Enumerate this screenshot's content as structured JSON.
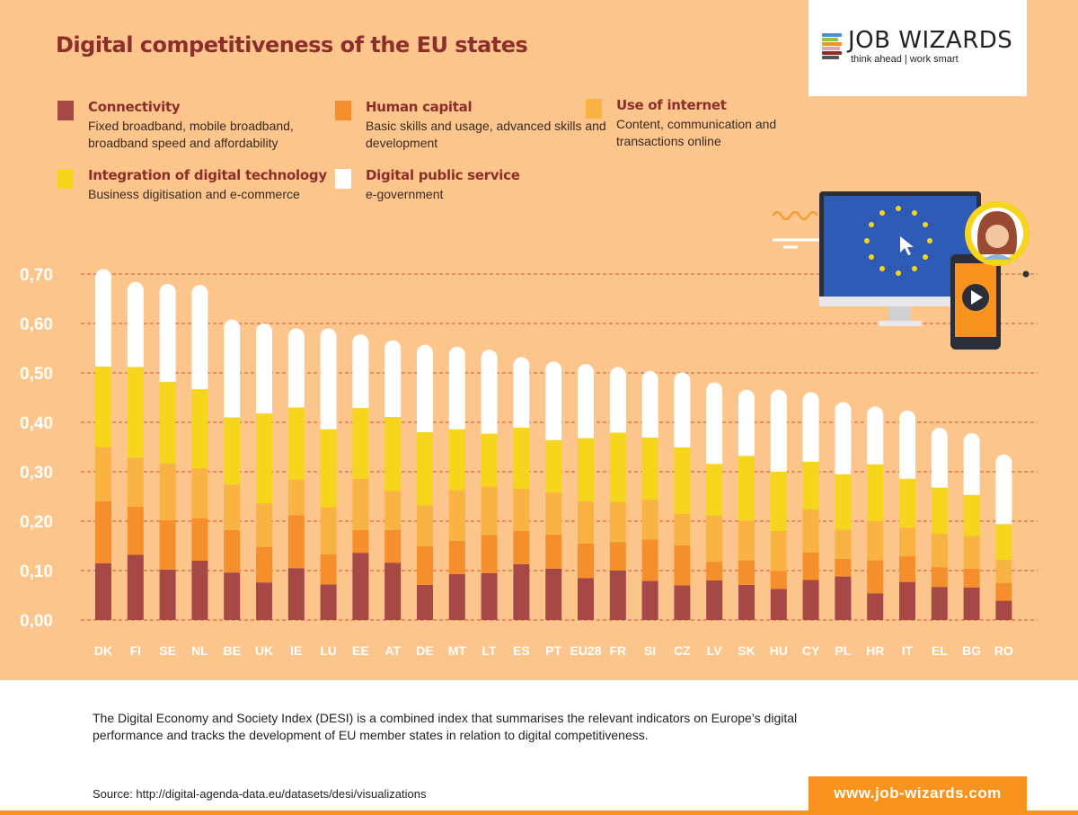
{
  "title": "Digital competitiveness of the EU states",
  "logo": {
    "name": "JOB WIZARDS",
    "tagline": "think ahead | work smart"
  },
  "colors": {
    "background": "#fcc58c",
    "connectivity": "#a64845",
    "human_capital": "#f58f2c",
    "use_of_internet": "#f9b342",
    "integration": "#f6d51d",
    "public_service": "#ffffff",
    "gridline": "#e0694a",
    "accent": "#f7931e"
  },
  "legend": [
    {
      "title": "Connectivity",
      "desc": "Fixed broadband, mobile broadband, broadband speed and affordability",
      "color": "#a64845"
    },
    {
      "title": "Human capital",
      "desc": "Basic skills and usage, advanced skills and development",
      "color": "#f58f2c"
    },
    {
      "title": "Use of internet",
      "desc": "Content, communication and transactions online",
      "color": "#f9b342"
    },
    {
      "title": "Integration of digital technology",
      "desc": "Business digitisation and e-commerce",
      "color": "#f6d51d"
    },
    {
      "title": "Digital public service",
      "desc": "e-government",
      "color": "#ffffff"
    }
  ],
  "chart_data": {
    "type": "bar",
    "stacked": true,
    "title": "Digital competitiveness of the EU states",
    "xlabel": "",
    "ylabel": "",
    "ylim": [
      0,
      0.7
    ],
    "yticks": [
      "0,00",
      "0,10",
      "0,20",
      "0,30",
      "0,40",
      "0,50",
      "0,60",
      "0,70"
    ],
    "grid": true,
    "categories": [
      "DK",
      "FI",
      "SE",
      "NL",
      "BE",
      "UK",
      "IE",
      "LU",
      "EE",
      "AT",
      "DE",
      "MT",
      "LT",
      "ES",
      "PT",
      "EU28",
      "FR",
      "SI",
      "CZ",
      "LV",
      "SK",
      "HU",
      "CY",
      "PL",
      "HR",
      "IT",
      "EL",
      "BG",
      "RO"
    ],
    "series": [
      {
        "name": "Connectivity",
        "values": [
          0.115,
          0.132,
          0.102,
          0.12,
          0.096,
          0.076,
          0.105,
          0.072,
          0.136,
          0.116,
          0.071,
          0.093,
          0.095,
          0.113,
          0.104,
          0.085,
          0.1,
          0.079,
          0.07,
          0.08,
          0.071,
          0.063,
          0.081,
          0.088,
          0.054,
          0.077,
          0.067,
          0.066,
          0.039
        ]
      },
      {
        "name": "Human capital",
        "values": [
          0.125,
          0.097,
          0.1,
          0.086,
          0.086,
          0.072,
          0.107,
          0.061,
          0.046,
          0.066,
          0.078,
          0.067,
          0.077,
          0.067,
          0.069,
          0.07,
          0.058,
          0.084,
          0.081,
          0.038,
          0.05,
          0.036,
          0.056,
          0.036,
          0.067,
          0.052,
          0.04,
          0.038,
          0.036
        ]
      },
      {
        "name": "Use of internet",
        "values": [
          0.11,
          0.1,
          0.115,
          0.101,
          0.092,
          0.088,
          0.072,
          0.095,
          0.104,
          0.079,
          0.083,
          0.103,
          0.098,
          0.086,
          0.085,
          0.085,
          0.081,
          0.081,
          0.064,
          0.093,
          0.08,
          0.081,
          0.087,
          0.059,
          0.079,
          0.058,
          0.068,
          0.066,
          0.047
        ]
      },
      {
        "name": "Integration of digital technology",
        "values": [
          0.163,
          0.183,
          0.165,
          0.16,
          0.136,
          0.182,
          0.146,
          0.158,
          0.143,
          0.15,
          0.148,
          0.123,
          0.107,
          0.123,
          0.106,
          0.128,
          0.14,
          0.125,
          0.134,
          0.105,
          0.131,
          0.12,
          0.096,
          0.112,
          0.115,
          0.099,
          0.093,
          0.083,
          0.072
        ]
      },
      {
        "name": "Digital public service",
        "values": [
          0.197,
          0.172,
          0.198,
          0.211,
          0.198,
          0.182,
          0.16,
          0.204,
          0.149,
          0.155,
          0.177,
          0.167,
          0.17,
          0.143,
          0.159,
          0.15,
          0.133,
          0.135,
          0.152,
          0.165,
          0.134,
          0.166,
          0.141,
          0.146,
          0.117,
          0.138,
          0.121,
          0.125,
          0.141
        ]
      }
    ]
  },
  "footnote": "The Digital Economy and Society Index (DESI) is a combined index that summarises the relevant indicators on Europe’s digital performance and tracks the development of EU member states in relation to digital competitiveness.",
  "source": "Source: http://digital-agenda-data.eu/datasets/desi/visualizations",
  "website": "www.job-wizards.com"
}
